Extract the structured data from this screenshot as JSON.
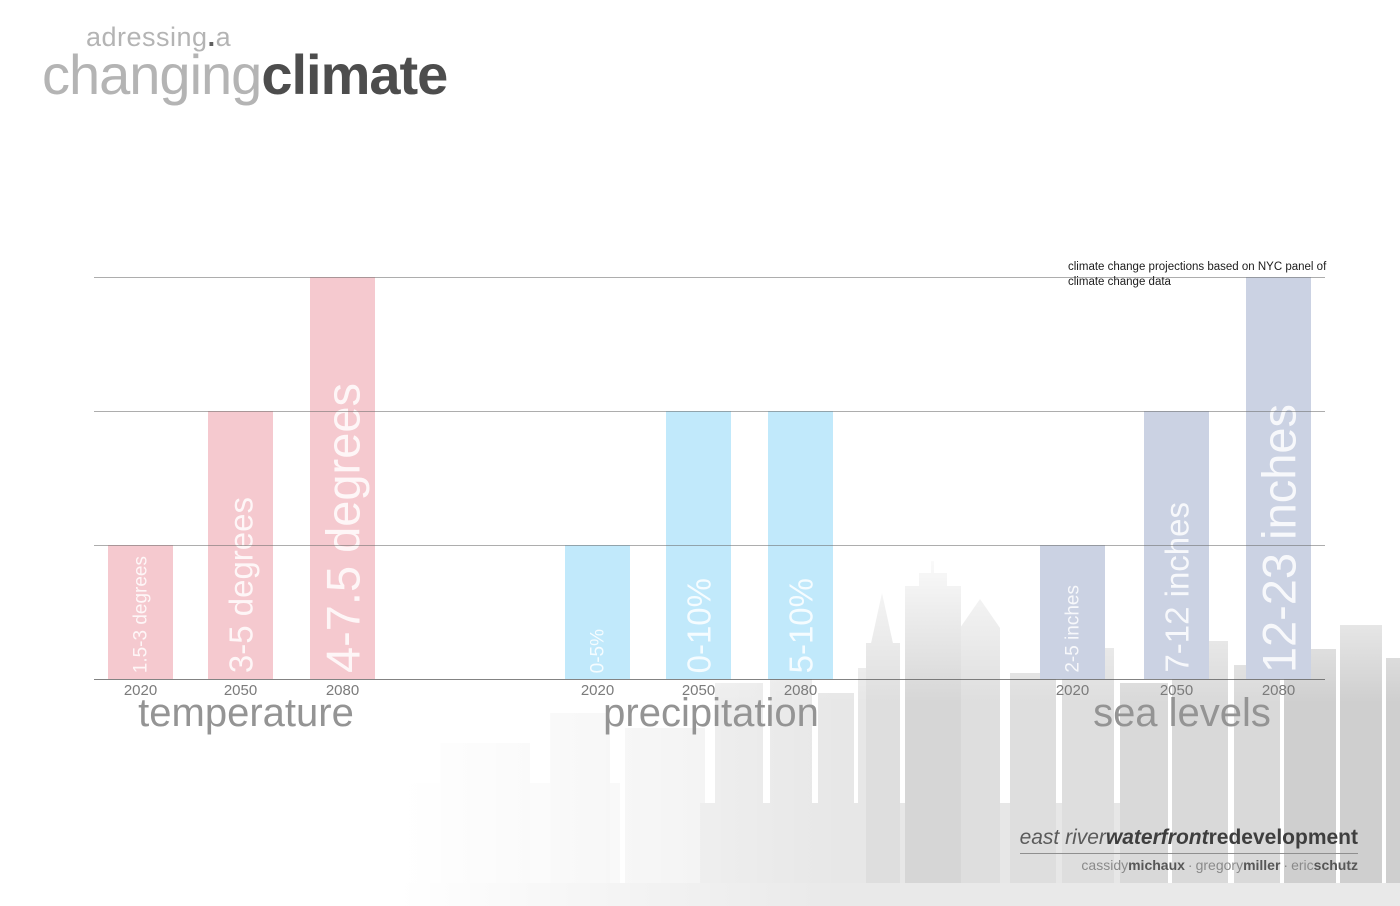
{
  "title": {
    "superscript": "adressing",
    "superscript_dot": ".",
    "superscript_suffix": "a",
    "light": "changing",
    "bold": "climate"
  },
  "annotation": {
    "line1": "climate change projections based on NYC panel of",
    "line2": "climate change data"
  },
  "chart_data": {
    "type": "bar",
    "categories": [
      "2020",
      "2050",
      "2080"
    ],
    "gridline_count": 3,
    "value_axis": {
      "labels_shown": false,
      "note": "unlabeled axis; bar heights measured in gridline intervals"
    },
    "annotation": "climate change projections based on NYC panel of climate change data",
    "legend_position": "none",
    "groups": [
      {
        "name": "temperature",
        "color": "#f5c9cf",
        "bars": [
          {
            "year": "2020",
            "label": "1.5-3 degrees",
            "height_units": 1
          },
          {
            "year": "2050",
            "label": "3-5 degrees",
            "height_units": 2
          },
          {
            "year": "2080",
            "label": "4-7.5 degrees",
            "height_units": 3
          }
        ]
      },
      {
        "name": "precipitation",
        "color": "#c1e9fb",
        "bars": [
          {
            "year": "2020",
            "label": "0-5%",
            "height_units": 1
          },
          {
            "year": "2050",
            "label": "0-10%",
            "height_units": 2
          },
          {
            "year": "2080",
            "label": "5-10%",
            "height_units": 2
          }
        ]
      },
      {
        "name": "sea levels",
        "color": "#cbd2e3",
        "bars": [
          {
            "year": "2020",
            "label": "2-5 inches",
            "height_units": 1
          },
          {
            "year": "2050",
            "label": "7-12 inches",
            "height_units": 2
          },
          {
            "year": "2080",
            "label": "12-23 inches",
            "height_units": 3
          }
        ]
      }
    ]
  },
  "footer": {
    "project_italic": "east river",
    "project_bold_italic": "waterfront",
    "project_bold": "redevelopment",
    "separator": "·",
    "credits": [
      {
        "first": "cassidy",
        "last": "michaux"
      },
      {
        "first": "gregory",
        "last": "miller"
      },
      {
        "first": "eric",
        "last": "schutz"
      }
    ]
  }
}
